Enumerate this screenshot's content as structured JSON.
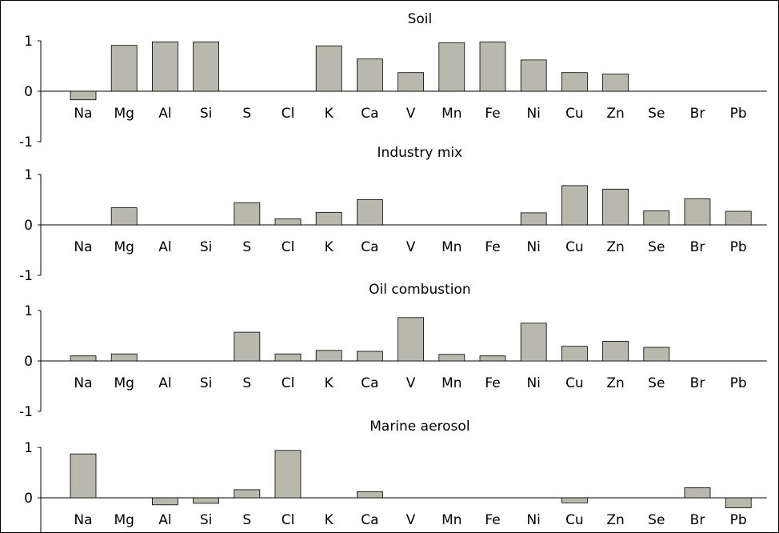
{
  "chart_data": [
    {
      "type": "bar",
      "title": "Soil",
      "categories": [
        "Na",
        "Mg",
        "Al",
        "Si",
        "S",
        "Cl",
        "K",
        "Ca",
        "V",
        "Mn",
        "Fe",
        "Ni",
        "Cu",
        "Zn",
        "Se",
        "Br",
        "Pb"
      ],
      "values": [
        -0.17,
        0.91,
        0.98,
        0.98,
        0,
        0,
        0.9,
        0.64,
        0.37,
        0.96,
        0.98,
        0.62,
        0.37,
        0.34,
        0,
        0,
        0
      ],
      "ylim": [
        -1,
        1
      ],
      "yticks": [
        "1",
        "0",
        "-1"
      ],
      "xlabel": "",
      "ylabel": ""
    },
    {
      "type": "bar",
      "title": "Industry mix",
      "categories": [
        "Na",
        "Mg",
        "Al",
        "Si",
        "S",
        "Cl",
        "K",
        "Ca",
        "V",
        "Mn",
        "Fe",
        "Ni",
        "Cu",
        "Zn",
        "Se",
        "Br",
        "Pb"
      ],
      "values": [
        0,
        0.34,
        0,
        0,
        0.44,
        0.12,
        0.25,
        0.5,
        0,
        0,
        0,
        0.24,
        0.78,
        0.71,
        0.28,
        0.52,
        0.27
      ],
      "ylim": [
        -1,
        1
      ],
      "yticks": [
        "1",
        "0",
        "-1"
      ],
      "xlabel": "",
      "ylabel": ""
    },
    {
      "type": "bar",
      "title": "Oil combustion",
      "categories": [
        "Na",
        "Mg",
        "Al",
        "Si",
        "S",
        "Cl",
        "K",
        "Ca",
        "V",
        "Mn",
        "Fe",
        "Ni",
        "Cu",
        "Zn",
        "Se",
        "Br",
        "Pb"
      ],
      "values": [
        0.1,
        0.14,
        0,
        0,
        0.57,
        0.14,
        0.21,
        0.19,
        0.86,
        0.13,
        0.1,
        0.75,
        0.29,
        0.39,
        0.27,
        0,
        0
      ],
      "ylim": [
        -1,
        1
      ],
      "yticks": [
        "1",
        "0",
        "-1"
      ],
      "xlabel": "",
      "ylabel": ""
    },
    {
      "type": "bar",
      "title": "Marine aerosol",
      "categories": [
        "Na",
        "Mg",
        "Al",
        "Si",
        "S",
        "Cl",
        "K",
        "Ca",
        "V",
        "Mn",
        "Fe",
        "Ni",
        "Cu",
        "Zn",
        "Se",
        "Br",
        "Pb"
      ],
      "values": [
        0.87,
        0,
        -0.14,
        -0.11,
        0.16,
        0.94,
        0,
        0.12,
        0,
        0,
        0,
        0,
        -0.1,
        0,
        0,
        0.2,
        -0.2
      ],
      "ylim": [
        -1,
        1
      ],
      "yticks": [
        "1",
        "0"
      ],
      "xlabel": "",
      "ylabel": ""
    }
  ],
  "colors": {
    "bar_fill": "#b8b8ac",
    "bar_stroke": "#000000",
    "axis": "#000000",
    "background": "#ffffff"
  }
}
